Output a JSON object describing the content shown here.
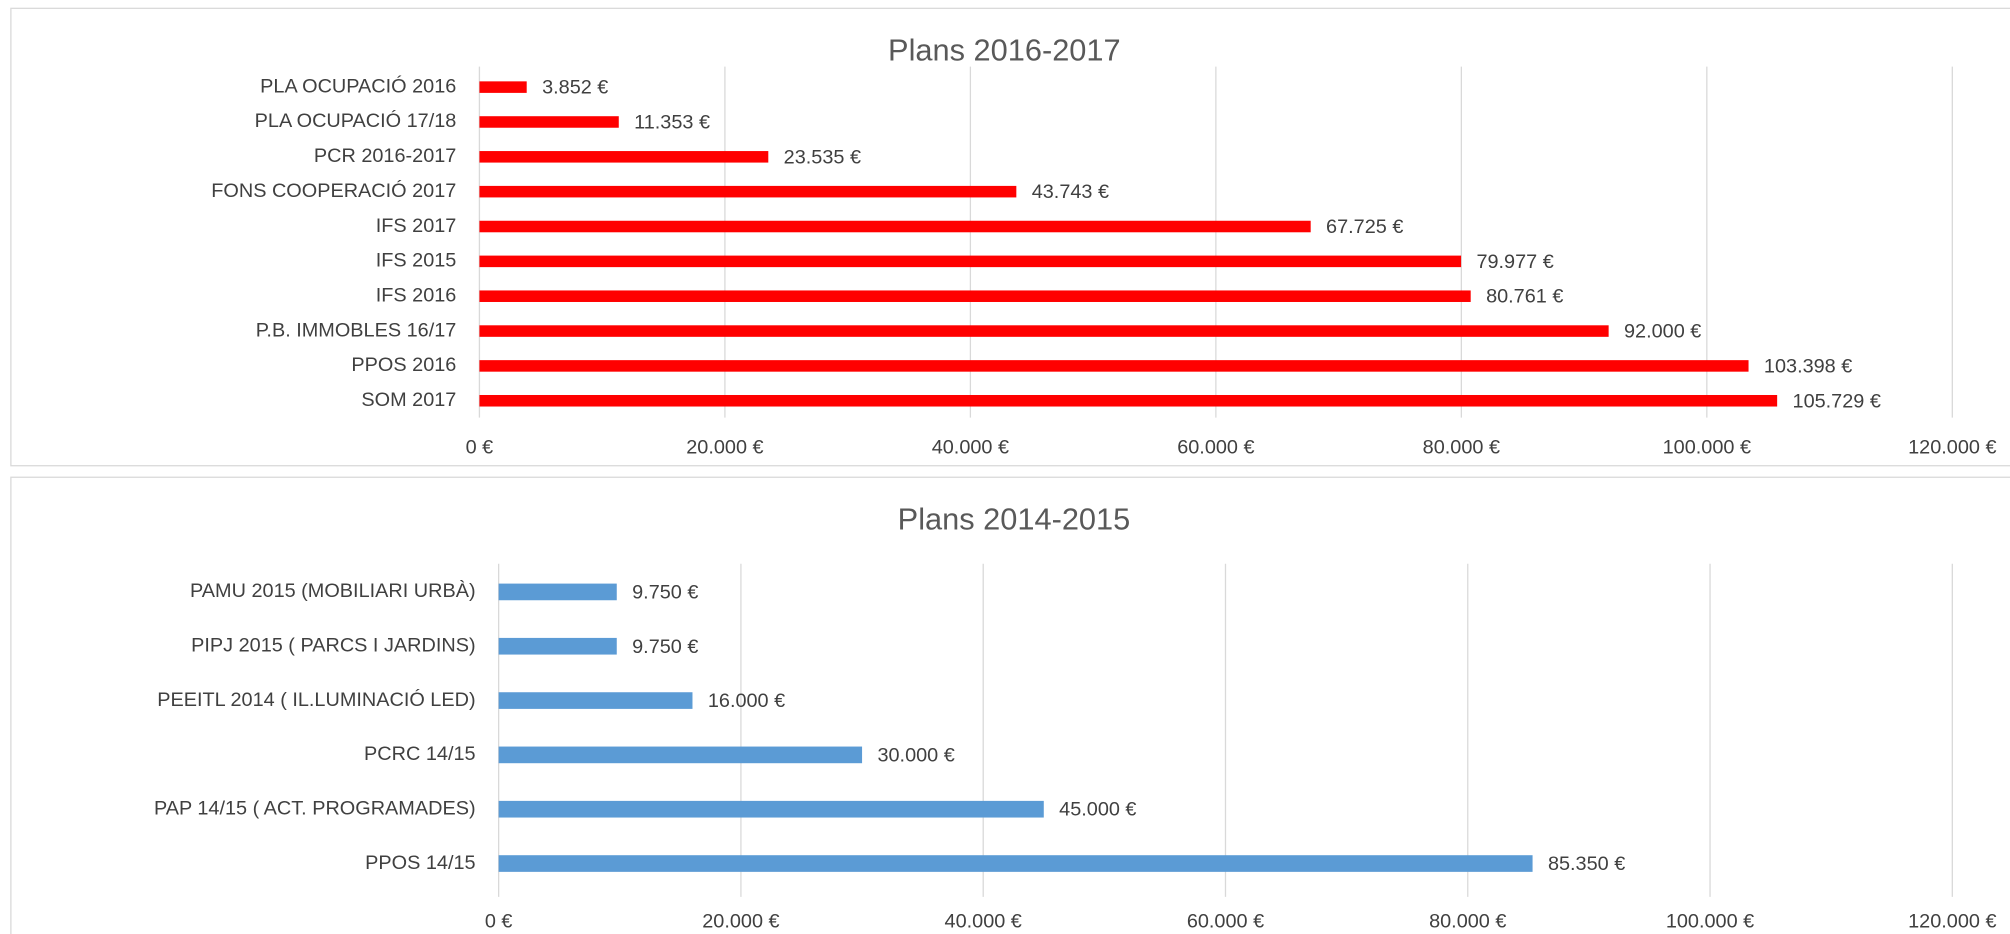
{
  "chart_data": [
    {
      "type": "bar",
      "orientation": "horizontal",
      "title": "Plans 2016-2017",
      "color": "#ff0000",
      "grid": true,
      "categories": [
        "PLA OCUPACIÓ 2016",
        "PLA OCUPACIÓ 17/18",
        "PCR 2016-2017",
        "FONS COOPERACIÓ 2017",
        "IFS 2017",
        "IFS 2015",
        "IFS 2016",
        "P.B. IMMOBLES 16/17",
        "PPOS 2016",
        "SOM 2017"
      ],
      "values": [
        3852,
        11353,
        23535,
        43743,
        67725,
        79977,
        80761,
        92000,
        103398,
        105729
      ],
      "value_labels": [
        "3.852 €",
        "11.353 €",
        "23.535 €",
        "43.743 €",
        "67.725 €",
        "79.977 €",
        "80.761 €",
        "92.000 €",
        "103.398 €",
        "105.729 €"
      ],
      "xlim": [
        0,
        120000
      ],
      "xticks": [
        {
          "value": 0,
          "label": "0 €"
        },
        {
          "value": 20000,
          "label": "20.000 €"
        },
        {
          "value": 40000,
          "label": "40.000 €"
        },
        {
          "value": 60000,
          "label": "60.000 €"
        },
        {
          "value": 80000,
          "label": "80.000 €"
        },
        {
          "value": 100000,
          "label": "100.000 €"
        },
        {
          "value": 120000,
          "label": "120.000 €"
        }
      ]
    },
    {
      "type": "bar",
      "orientation": "horizontal",
      "title": "Plans 2014-2015",
      "color": "#5b9bd5",
      "grid": true,
      "categories": [
        "PAMU 2015 (MOBILIARI URBÀ)",
        "PIPJ 2015 ( PARCS I JARDINS)",
        "PEEITL 2014 ( IL.LUMINACIÓ LED)",
        "PCRC 14/15",
        "PAP 14/15 ( ACT. PROGRAMADES)",
        "PPOS 14/15"
      ],
      "values": [
        9750,
        9750,
        16000,
        30000,
        45000,
        85350
      ],
      "value_labels": [
        "9.750 €",
        "9.750 €",
        "16.000 €",
        "30.000 €",
        "45.000 €",
        "85.350 €"
      ],
      "xlim": [
        0,
        120000
      ],
      "xticks": [
        {
          "value": 0,
          "label": "0 €"
        },
        {
          "value": 20000,
          "label": "20.000 €"
        },
        {
          "value": 40000,
          "label": "40.000 €"
        },
        {
          "value": 60000,
          "label": "60.000 €"
        },
        {
          "value": 80000,
          "label": "80.000 €"
        },
        {
          "value": 100000,
          "label": "100.000 €"
        },
        {
          "value": 120000,
          "label": "120.000 €"
        }
      ]
    }
  ]
}
